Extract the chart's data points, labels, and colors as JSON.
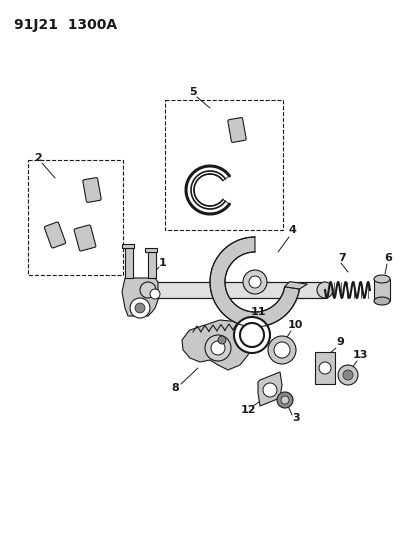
{
  "title": "91J21  1300A",
  "bg_color": "#ffffff",
  "line_color": "#1a1a1a",
  "title_fontsize": 10,
  "label_fontsize": 8,
  "figsize": [
    4.14,
    5.33
  ],
  "dpi": 100
}
